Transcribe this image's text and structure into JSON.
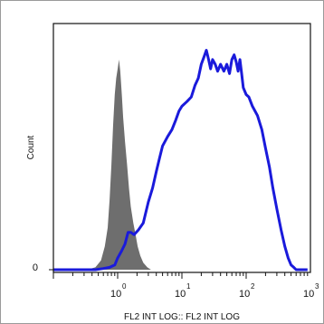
{
  "chart_data": {
    "type": "area",
    "title": "",
    "xlabel": "FL2 INT LOG:: FL2 INT LOG",
    "ylabel": "Count",
    "x_scale": "log",
    "xlim": [
      0.1,
      1000
    ],
    "ylim": [
      0,
      100
    ],
    "x_ticks": [
      {
        "base": "10",
        "exp": "0",
        "value": 1
      },
      {
        "base": "10",
        "exp": "1",
        "value": 10
      },
      {
        "base": "10",
        "exp": "2",
        "value": 100
      },
      {
        "base": "10",
        "exp": "3",
        "value": 1000
      }
    ],
    "y_ticks": [
      {
        "label": "0",
        "value": 0
      }
    ],
    "grid": false,
    "legend": "none",
    "series": [
      {
        "style": "filled",
        "color": "#6e6e6e",
        "points": [
          [
            0.33,
            0
          ],
          [
            0.45,
            1
          ],
          [
            0.55,
            4
          ],
          [
            0.63,
            10
          ],
          [
            0.7,
            18
          ],
          [
            0.75,
            30
          ],
          [
            0.8,
            45
          ],
          [
            0.85,
            62
          ],
          [
            0.9,
            75
          ],
          [
            0.95,
            82
          ],
          [
            1.0,
            86
          ],
          [
            1.05,
            90
          ],
          [
            1.1,
            85
          ],
          [
            1.16,
            75
          ],
          [
            1.22,
            65
          ],
          [
            1.3,
            55
          ],
          [
            1.4,
            45
          ],
          [
            1.5,
            35
          ],
          [
            1.6,
            27
          ],
          [
            1.75,
            20
          ],
          [
            1.9,
            15
          ],
          [
            2.05,
            10
          ],
          [
            2.25,
            6
          ],
          [
            2.5,
            3
          ],
          [
            2.9,
            1
          ],
          [
            3.3,
            0
          ]
        ]
      },
      {
        "style": "line",
        "color": "#1a1adb",
        "points": [
          [
            0.1,
            0
          ],
          [
            0.45,
            0
          ],
          [
            0.6,
            0.5
          ],
          [
            0.75,
            1
          ],
          [
            0.9,
            2
          ],
          [
            1.0,
            5
          ],
          [
            1.15,
            8
          ],
          [
            1.3,
            11
          ],
          [
            1.45,
            16
          ],
          [
            1.6,
            16
          ],
          [
            1.8,
            15
          ],
          [
            2.1,
            17
          ],
          [
            2.5,
            20
          ],
          [
            3.0,
            29
          ],
          [
            3.5,
            35
          ],
          [
            4.0,
            42
          ],
          [
            4.5,
            48
          ],
          [
            5.0,
            53
          ],
          [
            6.0,
            57
          ],
          [
            7.0,
            60
          ],
          [
            8.0,
            64
          ],
          [
            9.0,
            68
          ],
          [
            10,
            70
          ],
          [
            12,
            72
          ],
          [
            14,
            74
          ],
          [
            16,
            79
          ],
          [
            18,
            82
          ],
          [
            20,
            88
          ],
          [
            22,
            91
          ],
          [
            24,
            94
          ],
          [
            26,
            90
          ],
          [
            28,
            86
          ],
          [
            30,
            90
          ],
          [
            33,
            88
          ],
          [
            36,
            85
          ],
          [
            40,
            88
          ],
          [
            45,
            85
          ],
          [
            50,
            88
          ],
          [
            55,
            84
          ],
          [
            60,
            90
          ],
          [
            65,
            92
          ],
          [
            70,
            89
          ],
          [
            75,
            85
          ],
          [
            80,
            90
          ],
          [
            85,
            84
          ],
          [
            90,
            78
          ],
          [
            100,
            75
          ],
          [
            110,
            74
          ],
          [
            125,
            70
          ],
          [
            150,
            66
          ],
          [
            175,
            60
          ],
          [
            200,
            52
          ],
          [
            230,
            44
          ],
          [
            260,
            35
          ],
          [
            300,
            26
          ],
          [
            350,
            17
          ],
          [
            400,
            10
          ],
          [
            450,
            5
          ],
          [
            500,
            2
          ],
          [
            550,
            1
          ],
          [
            600,
            0
          ],
          [
            900,
            0
          ]
        ]
      }
    ]
  }
}
